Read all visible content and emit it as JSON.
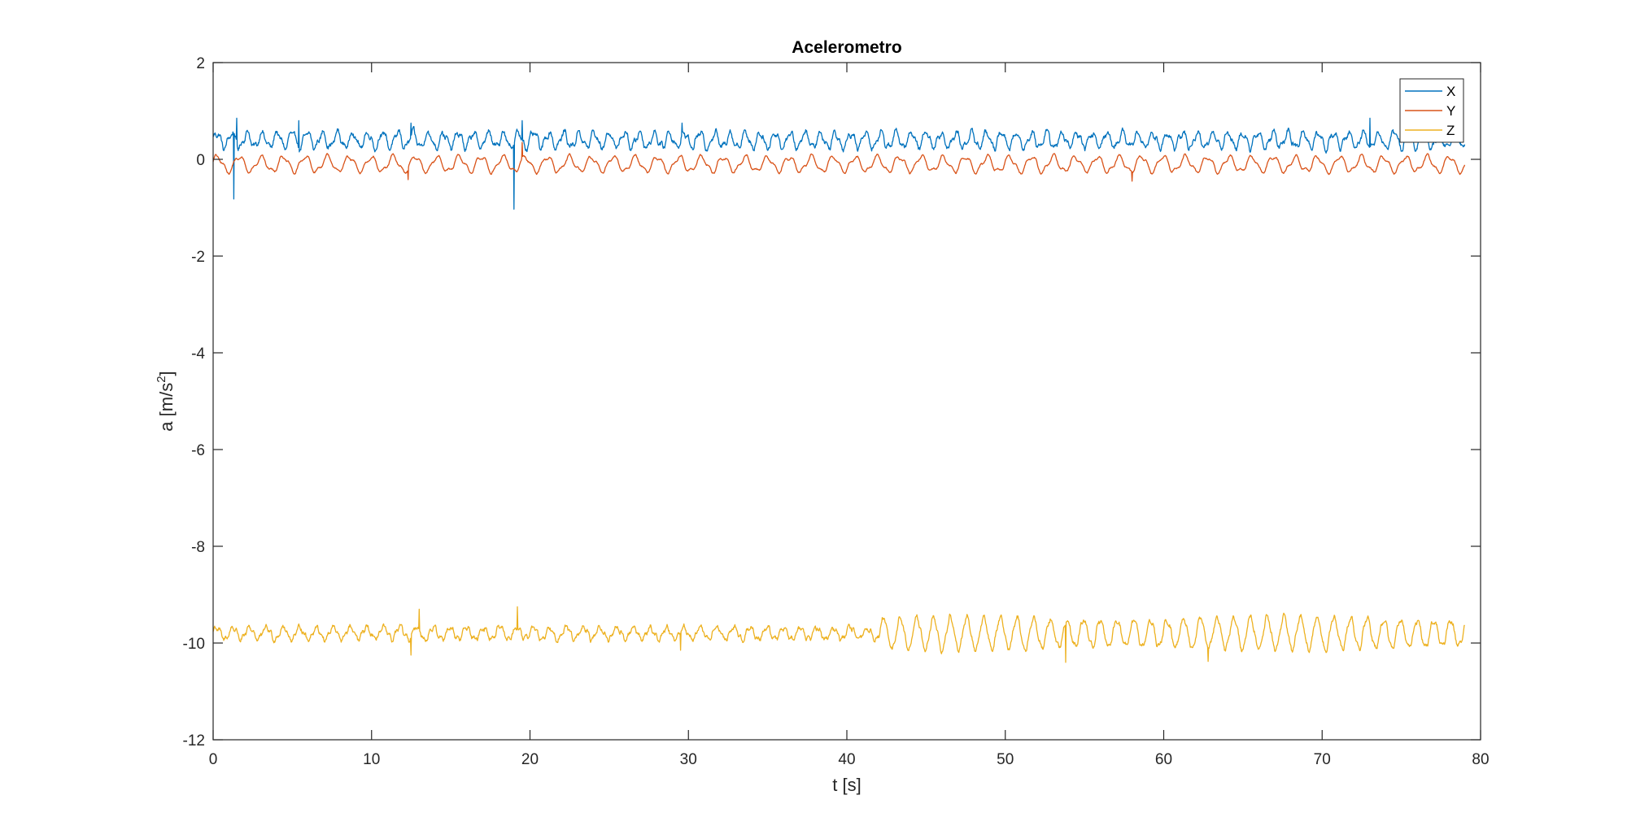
{
  "chart_data": {
    "type": "line",
    "title": "Acelerometro",
    "xlabel": "t [s]",
    "ylabel_main": "a [m/s",
    "ylabel_sup": "2",
    "ylabel_end": "]",
    "xlim": [
      0,
      80
    ],
    "ylim": [
      -12,
      2
    ],
    "xticks": [
      0,
      10,
      20,
      30,
      40,
      50,
      60,
      70,
      80
    ],
    "yticks": [
      -12,
      -10,
      -8,
      -6,
      -4,
      -2,
      0,
      2
    ],
    "t_end": 79,
    "legend": {
      "position": "top-right",
      "entries": [
        "X",
        "Y",
        "Z"
      ]
    },
    "grid": false,
    "series": [
      {
        "name": "X",
        "color": "#0072BD",
        "mean": 0.4,
        "description": "oscillates roughly between 0.1 and 0.8",
        "spikes": [
          {
            "t": 1.3,
            "v": -0.82
          },
          {
            "t": 1.5,
            "v": 0.85
          },
          {
            "t": 5.4,
            "v": 0.8
          },
          {
            "t": 12.5,
            "v": 0.75
          },
          {
            "t": 19.0,
            "v": -1.03
          },
          {
            "t": 19.5,
            "v": 0.8
          },
          {
            "t": 29.6,
            "v": -0.5
          },
          {
            "t": 29.6,
            "v": 0.75
          },
          {
            "t": 73.0,
            "v": 0.85
          }
        ]
      },
      {
        "name": "Y",
        "color": "#D95319",
        "mean": -0.1,
        "description": "oscillates roughly between -0.4 and 0.3",
        "spikes": [
          {
            "t": 12.3,
            "v": -0.42
          },
          {
            "t": 19.5,
            "v": 0.35
          },
          {
            "t": 58.0,
            "v": -0.45
          }
        ]
      },
      {
        "name": "Z",
        "color": "#EDB120",
        "mean": -9.8,
        "description": "oscillates around -9.8, amplitude grows after t=42s up to about -9.2 / -10.4",
        "spikes": [
          {
            "t": 12.5,
            "v": -10.25
          },
          {
            "t": 13.0,
            "v": -9.3
          },
          {
            "t": 19.2,
            "v": -9.25
          },
          {
            "t": 29.5,
            "v": -10.15
          },
          {
            "t": 53.8,
            "v": -10.4
          },
          {
            "t": 62.8,
            "v": -10.38
          }
        ]
      }
    ]
  }
}
